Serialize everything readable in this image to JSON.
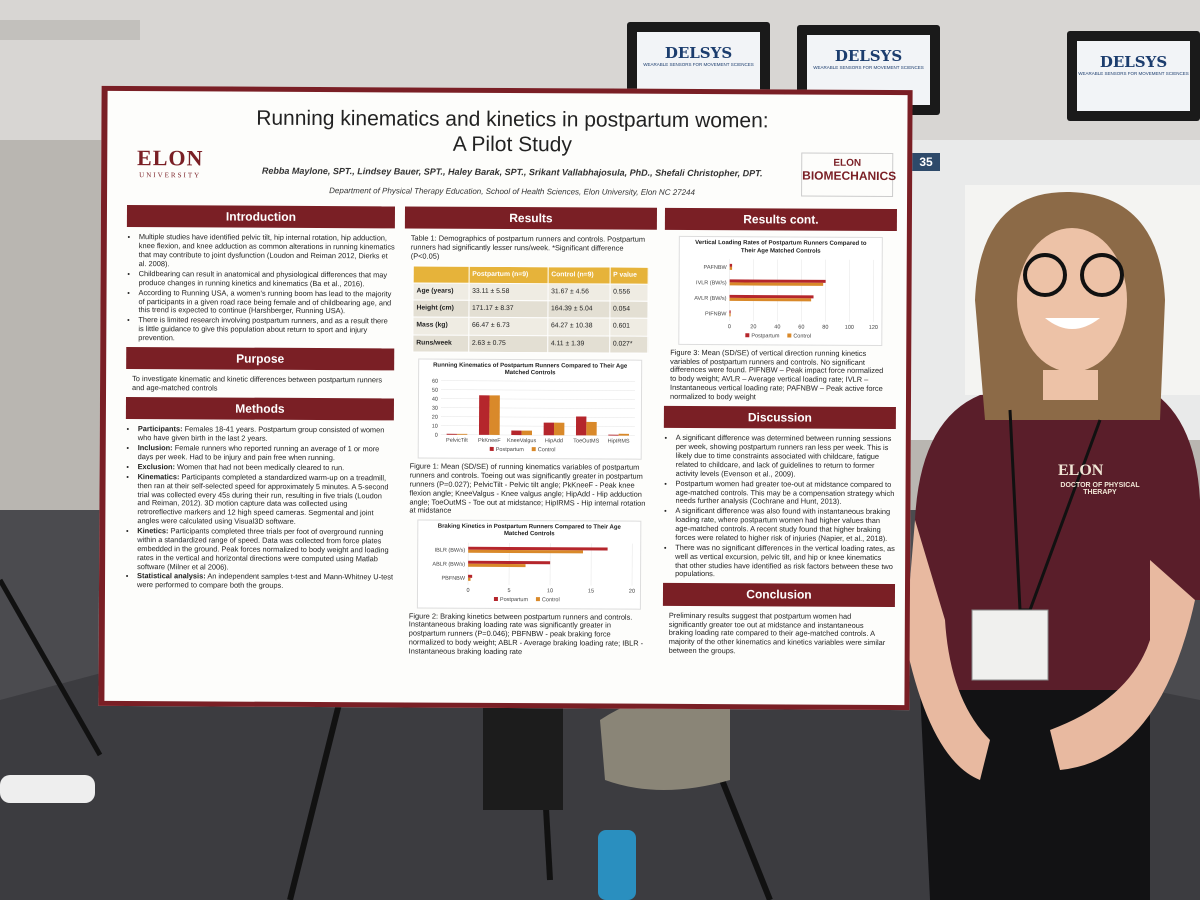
{
  "signs": {
    "brand": "DELSYS",
    "tagline": "WEARABLE SENSORS FOR MOVEMENT SCIENCES",
    "booth": "35"
  },
  "poster": {
    "logo_left": "ELON",
    "logo_left_sub": "UNIVERSITY",
    "logo_right_top": "ELON",
    "logo_right": "BIOMECHANICS",
    "title": "Running kinematics and kinetics in postpartum women:",
    "title2": "A Pilot Study",
    "authors": "Rebba Maylone, SPT., Lindsey Bauer, SPT., Haley Barak, SPT., Srikant Vallabhajosula, PhD., Shefali Christopher, DPT.",
    "affiliation": "Department of Physical Therapy Education, School of Health Sciences, Elon University, Elon NC 27244",
    "introduction": {
      "heading": "Introduction",
      "bullets": [
        "Multiple studies have identified pelvic tilt, hip internal rotation, hip adduction, knee flexion, and knee adduction as common alterations in running kinematics that may contribute to joint dysfunction (Loudon and Reiman 2012, Dierks et al. 2008).",
        "Childbearing can result in anatomical and physiological differences that may produce changes in running kinetics and kinematics (Ba et al., 2016).",
        "According to Running USA, a women's running boom has lead to the majority of participants in a given road race being female and of childbearing age, and this trend is expected to continue (Harshberger, Running USA).",
        "There is limited research involving postpartum runners, and as a result there is little guidance to give this population about return to sport and injury prevention."
      ]
    },
    "purpose": {
      "heading": "Purpose",
      "text": "To investigate kinematic and kinetic differences between postpartum runners and age-matched controls"
    },
    "methods": {
      "heading": "Methods",
      "bullets": [
        {
          "label": "Participants:",
          "text": "Females 18-41 years. Postpartum group consisted of women who have given birth in the last 2 years."
        },
        {
          "label": "Inclusion:",
          "text": "Female runners who reported running an average of 1 or more days per week. Had to be injury and pain free when running."
        },
        {
          "label": "Exclusion:",
          "text": "Women that had not been medically cleared to run."
        },
        {
          "label": "Kinematics:",
          "text": "Participants completed a standardized warm-up on a treadmill, then ran at their self-selected speed for approximately 5 minutes. A 5-second trial was collected every 45s during their run, resulting in five trials (Loudon and Reiman, 2012). 3D motion capture data was collected using retroreflective markers and 12 high speed cameras. Segmental and joint angles were calculated using Visual3D software."
        },
        {
          "label": "Kinetics:",
          "text": "Participants completed three trials per foot of overground running within a standardized range of speed. Data was collected from force plates embedded in the ground. Peak forces normalized to body weight and loading rates in the vertical and horizontal directions were computed using Matlab software (Milner et al 2006)."
        },
        {
          "label": "Statistical analysis:",
          "text": "An independent samples t-test and Mann-Whitney U-test were performed to compare both the groups."
        }
      ]
    },
    "results": {
      "heading": "Results",
      "table_caption": "Table 1: Demographics of postpartum runners and controls. Postpartum runners had significantly lesser runs/week. *Significant difference (P<0.05)",
      "table": {
        "header": [
          "Postpartum (n=9)",
          "Control (n=9)",
          "P value"
        ],
        "rows": [
          [
            "Age (years)",
            "33.11 ± 5.58",
            "31.67 ± 4.56",
            "0.556"
          ],
          [
            "Height (cm)",
            "171.17 ± 8.37",
            "164.39 ± 5.04",
            "0.054"
          ],
          [
            "Mass (kg)",
            "66.47 ± 6.73",
            "64.27 ± 10.38",
            "0.601"
          ],
          [
            "Runs/week",
            "2.63 ± 0.75",
            "4.11 ± 1.39",
            "0.027*"
          ]
        ]
      },
      "figure1_caption": "Figure 1: Mean (SD/SE) of running kinematics variables of postpartum runners and controls. Toeing out was significantly greater in postpartum runners (P=0.027); PelvicTilt - Pelvic tilt angle; PkKneeF - Peak knee flexion angle; KneeValgus - Knee valgus angle; HipAdd - Hip adduction angle; ToeOutMS - Toe out at midstance; HipIRMS - Hip internal rotation at midstance",
      "figure2_caption": "Figure 2: Braking kinetics between postpartum runners and controls. Instantaneous braking loading rate was significantly greater in postpartum runners (P=0.046); PBFNBW - peak braking force normalized to body weight; ABLR - Average braking loading rate; IBLR - Instantaneous braking loading rate"
    },
    "results_cont": {
      "heading": "Results cont.",
      "figure3_caption": "Figure 3: Mean (SD/SE) of vertical direction running kinetics variables of postpartum runners and controls. No significant differences were found. PIFNBW – Peak impact force normalized to body weight; AVLR – Average vertical loading rate; IVLR – Instantaneous vertical loading rate; PAFNBW – Peak active force normalized to body weight"
    },
    "discussion": {
      "heading": "Discussion",
      "bullets": [
        "A significant difference was determined between running sessions per week, showing postpartum runners ran less per week. This is likely due to time constraints associated with childcare, fatigue related to childcare, and lack of guidelines to return to former activity levels (Evenson et al., 2009).",
        "Postpartum women had greater toe-out at midstance compared to age-matched controls. This may be a compensation strategy which needs further analysis (Cochrane and Hunt, 2013).",
        "A significant difference was also found with instantaneous braking loading rate, where postpartum women had higher values than age-matched controls. A recent study found that higher braking forces were related to higher risk of injuries (Napier, et al., 2018).",
        "There was no significant differences in the vertical loading rates, as well as vertical excursion, pelvic tilt, and hip or knee kinematics that other studies have identified as risk factors between these two populations."
      ]
    },
    "conclusion": {
      "heading": "Conclusion",
      "text": "Preliminary results suggest that postpartum women had significantly greater toe out at midstance and instantaneous braking loading rate compared to their age-matched controls. A majority of the other kinematics and kinetics variables were similar between the groups."
    }
  },
  "shirt": {
    "logo": "ELON",
    "text": "DOCTOR OF PHYSICAL THERAPY"
  },
  "chart_data": [
    {
      "type": "bar",
      "orientation": "vertical",
      "title": "Running Kinematics of Postpartum Runners Compared to Their Age Matched Controls",
      "categories": [
        "PelvicTilt",
        "PkKneeF",
        "KneeValgus",
        "HipAdd",
        "ToeOutMS",
        "HipIRMS"
      ],
      "series": [
        {
          "name": "Postpartum",
          "color": "#b5262c",
          "values": [
            1,
            44,
            5,
            14,
            21,
            1
          ]
        },
        {
          "name": "Control",
          "color": "#d9892a",
          "values": [
            1,
            44,
            5,
            14,
            15,
            2
          ]
        }
      ],
      "ylim": [
        0,
        60
      ],
      "yticks": [
        0,
        10,
        20,
        30,
        40,
        50,
        60
      ]
    },
    {
      "type": "bar",
      "orientation": "horizontal",
      "title": "Braking Kinetics in Postpartum Runners Compared to Their Age Matched Controls",
      "categories": [
        "IBLR (BW/s)",
        "ABLR (BW/s)",
        "PBFNBW"
      ],
      "series": [
        {
          "name": "Postpartum",
          "color": "#b5262c",
          "values": [
            17,
            10,
            0.5
          ]
        },
        {
          "name": "Control",
          "color": "#d9892a",
          "values": [
            14,
            7,
            0.3
          ]
        }
      ],
      "xlim": [
        0,
        20
      ],
      "xticks": [
        0,
        5,
        10,
        15,
        20
      ]
    },
    {
      "type": "bar",
      "orientation": "horizontal",
      "title": "Vertical Loading Rates of Postpartum Runners Compared to Their Age Matched Controls",
      "categories": [
        "PAFNBW",
        "IVLR (BW/s)",
        "AVLR (BW/s)",
        "PIFNBW"
      ],
      "series": [
        {
          "name": "Postpartum",
          "color": "#b5262c",
          "values": [
            2,
            80,
            70,
            1
          ]
        },
        {
          "name": "Control",
          "color": "#d9892a",
          "values": [
            2,
            78,
            68,
            1
          ]
        }
      ],
      "xlim": [
        0,
        120
      ],
      "xticks": [
        0,
        20,
        40,
        60,
        80,
        100,
        120
      ]
    }
  ]
}
